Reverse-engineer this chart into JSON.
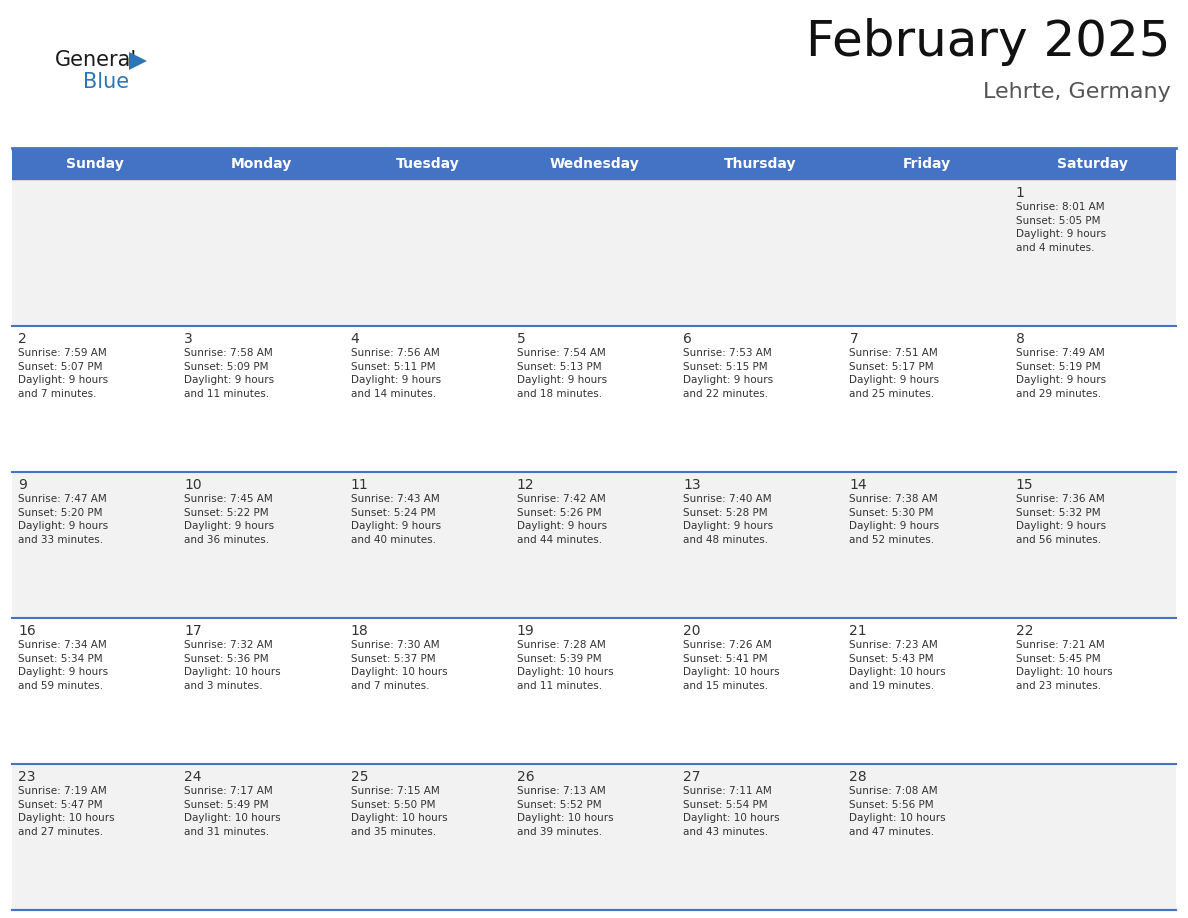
{
  "title": "February 2025",
  "subtitle": "Lehrte, Germany",
  "header_bg": "#4472C4",
  "header_text_color": "#FFFFFF",
  "cell_bg_even": "#F2F2F2",
  "cell_bg_odd": "#FFFFFF",
  "border_color": "#4472C4",
  "text_color": "#333333",
  "days_of_week": [
    "Sunday",
    "Monday",
    "Tuesday",
    "Wednesday",
    "Thursday",
    "Friday",
    "Saturday"
  ],
  "weeks": [
    [
      {
        "day": "",
        "info": ""
      },
      {
        "day": "",
        "info": ""
      },
      {
        "day": "",
        "info": ""
      },
      {
        "day": "",
        "info": ""
      },
      {
        "day": "",
        "info": ""
      },
      {
        "day": "",
        "info": ""
      },
      {
        "day": "1",
        "info": "Sunrise: 8:01 AM\nSunset: 5:05 PM\nDaylight: 9 hours\nand 4 minutes."
      }
    ],
    [
      {
        "day": "2",
        "info": "Sunrise: 7:59 AM\nSunset: 5:07 PM\nDaylight: 9 hours\nand 7 minutes."
      },
      {
        "day": "3",
        "info": "Sunrise: 7:58 AM\nSunset: 5:09 PM\nDaylight: 9 hours\nand 11 minutes."
      },
      {
        "day": "4",
        "info": "Sunrise: 7:56 AM\nSunset: 5:11 PM\nDaylight: 9 hours\nand 14 minutes."
      },
      {
        "day": "5",
        "info": "Sunrise: 7:54 AM\nSunset: 5:13 PM\nDaylight: 9 hours\nand 18 minutes."
      },
      {
        "day": "6",
        "info": "Sunrise: 7:53 AM\nSunset: 5:15 PM\nDaylight: 9 hours\nand 22 minutes."
      },
      {
        "day": "7",
        "info": "Sunrise: 7:51 AM\nSunset: 5:17 PM\nDaylight: 9 hours\nand 25 minutes."
      },
      {
        "day": "8",
        "info": "Sunrise: 7:49 AM\nSunset: 5:19 PM\nDaylight: 9 hours\nand 29 minutes."
      }
    ],
    [
      {
        "day": "9",
        "info": "Sunrise: 7:47 AM\nSunset: 5:20 PM\nDaylight: 9 hours\nand 33 minutes."
      },
      {
        "day": "10",
        "info": "Sunrise: 7:45 AM\nSunset: 5:22 PM\nDaylight: 9 hours\nand 36 minutes."
      },
      {
        "day": "11",
        "info": "Sunrise: 7:43 AM\nSunset: 5:24 PM\nDaylight: 9 hours\nand 40 minutes."
      },
      {
        "day": "12",
        "info": "Sunrise: 7:42 AM\nSunset: 5:26 PM\nDaylight: 9 hours\nand 44 minutes."
      },
      {
        "day": "13",
        "info": "Sunrise: 7:40 AM\nSunset: 5:28 PM\nDaylight: 9 hours\nand 48 minutes."
      },
      {
        "day": "14",
        "info": "Sunrise: 7:38 AM\nSunset: 5:30 PM\nDaylight: 9 hours\nand 52 minutes."
      },
      {
        "day": "15",
        "info": "Sunrise: 7:36 AM\nSunset: 5:32 PM\nDaylight: 9 hours\nand 56 minutes."
      }
    ],
    [
      {
        "day": "16",
        "info": "Sunrise: 7:34 AM\nSunset: 5:34 PM\nDaylight: 9 hours\nand 59 minutes."
      },
      {
        "day": "17",
        "info": "Sunrise: 7:32 AM\nSunset: 5:36 PM\nDaylight: 10 hours\nand 3 minutes."
      },
      {
        "day": "18",
        "info": "Sunrise: 7:30 AM\nSunset: 5:37 PM\nDaylight: 10 hours\nand 7 minutes."
      },
      {
        "day": "19",
        "info": "Sunrise: 7:28 AM\nSunset: 5:39 PM\nDaylight: 10 hours\nand 11 minutes."
      },
      {
        "day": "20",
        "info": "Sunrise: 7:26 AM\nSunset: 5:41 PM\nDaylight: 10 hours\nand 15 minutes."
      },
      {
        "day": "21",
        "info": "Sunrise: 7:23 AM\nSunset: 5:43 PM\nDaylight: 10 hours\nand 19 minutes."
      },
      {
        "day": "22",
        "info": "Sunrise: 7:21 AM\nSunset: 5:45 PM\nDaylight: 10 hours\nand 23 minutes."
      }
    ],
    [
      {
        "day": "23",
        "info": "Sunrise: 7:19 AM\nSunset: 5:47 PM\nDaylight: 10 hours\nand 27 minutes."
      },
      {
        "day": "24",
        "info": "Sunrise: 7:17 AM\nSunset: 5:49 PM\nDaylight: 10 hours\nand 31 minutes."
      },
      {
        "day": "25",
        "info": "Sunrise: 7:15 AM\nSunset: 5:50 PM\nDaylight: 10 hours\nand 35 minutes."
      },
      {
        "day": "26",
        "info": "Sunrise: 7:13 AM\nSunset: 5:52 PM\nDaylight: 10 hours\nand 39 minutes."
      },
      {
        "day": "27",
        "info": "Sunrise: 7:11 AM\nSunset: 5:54 PM\nDaylight: 10 hours\nand 43 minutes."
      },
      {
        "day": "28",
        "info": "Sunrise: 7:08 AM\nSunset: 5:56 PM\nDaylight: 10 hours\nand 47 minutes."
      },
      {
        "day": "",
        "info": ""
      }
    ]
  ],
  "logo_general_color": "#1a1a1a",
  "logo_blue_color": "#2E75B6",
  "title_color": "#111111",
  "subtitle_color": "#555555"
}
